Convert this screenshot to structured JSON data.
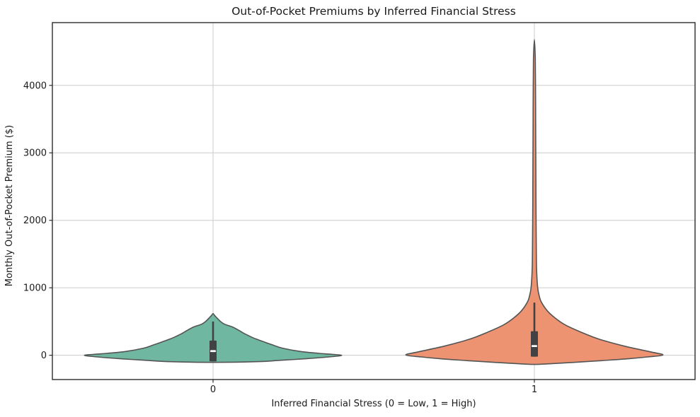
{
  "chart_data": {
    "type": "violin",
    "title": "Out-of-Pocket Premiums by Inferred Financial Stress",
    "xlabel": "Inferred Financial Stress (0 = Low, 1 = High)",
    "ylabel": "Monthly Out-of-Pocket Premium ($)",
    "x_tick_labels": [
      "0",
      "1"
    ],
    "y_ticks": [
      0,
      1000,
      2000,
      3000,
      4000
    ],
    "ylim": [
      -360,
      4930
    ],
    "grid": true,
    "legend_position": "none",
    "violin_width": 0.8,
    "colors": {
      "grid": "#cbcbcb",
      "spine": "#2b2b2b",
      "violin_edge": "#545454",
      "box": "#424242",
      "median": "#ffffff",
      "text": "#1a1a1a"
    },
    "series": [
      {
        "category": "0",
        "fill": "#6fb7a0",
        "box": {
          "whisker_high": 500,
          "q3": 218,
          "median": 62,
          "q1": -90
        },
        "stats": {
          "max": 617,
          "min": -105
        },
        "profile": [
          [
            617,
            0
          ],
          [
            590,
            0.012
          ],
          [
            555,
            0.03
          ],
          [
            505,
            0.055
          ],
          [
            460,
            0.09
          ],
          [
            420,
            0.15
          ],
          [
            370,
            0.2
          ],
          [
            315,
            0.25
          ],
          [
            260,
            0.31
          ],
          [
            210,
            0.38
          ],
          [
            155,
            0.46
          ],
          [
            105,
            0.54
          ],
          [
            53,
            0.69
          ],
          [
            21,
            0.87
          ],
          [
            0,
            1.0
          ],
          [
            -25,
            0.9
          ],
          [
            -52,
            0.72
          ],
          [
            -75,
            0.52
          ],
          [
            -94,
            0.36
          ],
          [
            -105,
            0
          ]
        ]
      },
      {
        "category": "1",
        "fill": "#ee9372",
        "box": {
          "whisker_high": 780,
          "q3": 356,
          "median": 136,
          "q1": -21
        },
        "stats": {
          "max": 4680,
          "min": -136
        },
        "profile": [
          [
            4680,
            0
          ],
          [
            4400,
            0.007
          ],
          [
            4000,
            0.009
          ],
          [
            3500,
            0.01
          ],
          [
            3000,
            0.011
          ],
          [
            2500,
            0.012
          ],
          [
            2000,
            0.013
          ],
          [
            1600,
            0.015
          ],
          [
            1283,
            0.017
          ],
          [
            1000,
            0.026
          ],
          [
            860,
            0.04
          ],
          [
            785,
            0.055
          ],
          [
            659,
            0.1
          ],
          [
            554,
            0.16
          ],
          [
            450,
            0.24
          ],
          [
            345,
            0.36
          ],
          [
            241,
            0.5
          ],
          [
            136,
            0.7
          ],
          [
            52,
            0.9
          ],
          [
            5,
            1.0
          ],
          [
            -25,
            0.88
          ],
          [
            -52,
            0.73
          ],
          [
            -80,
            0.52
          ],
          [
            -105,
            0.31
          ],
          [
            -125,
            0.13
          ],
          [
            -136,
            0
          ]
        ]
      }
    ]
  }
}
